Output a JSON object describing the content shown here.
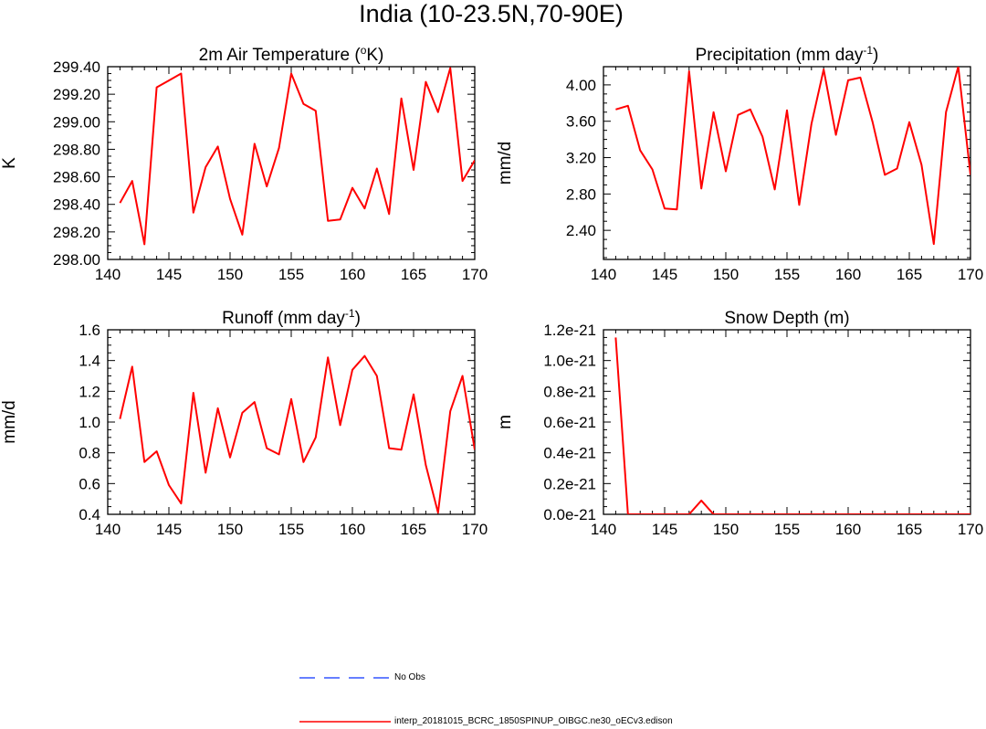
{
  "title": "India (10-23.5N,70-90E)",
  "colors": {
    "model": "#ff0000",
    "obs": "#3355ff",
    "axis": "#000000"
  },
  "legend": {
    "obs_label": "No Obs",
    "model_label": "interp_20181015_BCRC_1850SPINUP_OIBGC.ne30_oECv3.edison"
  },
  "chart_data": [
    {
      "type": "line",
      "title": "2m Air Temperature (",
      "title_sup": "o",
      "title_after": "K)",
      "ylabel": "K",
      "xlim": [
        140,
        170
      ],
      "ylim": [
        298.0,
        299.4
      ],
      "xticks": [
        140,
        145,
        150,
        155,
        160,
        165,
        170
      ],
      "xtick_labels": [
        "140",
        "145",
        "150",
        "155",
        "160",
        "165",
        "170"
      ],
      "yticks": [
        298.0,
        298.2,
        298.4,
        298.6,
        298.8,
        299.0,
        299.2,
        299.4
      ],
      "ytick_labels": [
        "298.00",
        "298.20",
        "298.40",
        "298.60",
        "298.80",
        "299.00",
        "299.20",
        "299.40"
      ],
      "x": [
        141,
        142,
        143,
        144,
        145,
        146,
        147,
        148,
        149,
        150,
        151,
        152,
        153,
        154,
        155,
        156,
        157,
        158,
        159,
        160,
        161,
        162,
        163,
        164,
        165,
        166,
        167,
        168,
        169,
        170
      ],
      "series": [
        {
          "name": "model",
          "values": [
            298.41,
            298.57,
            298.11,
            299.25,
            299.3,
            299.35,
            298.34,
            298.67,
            298.82,
            298.44,
            298.18,
            298.84,
            298.53,
            298.81,
            299.35,
            299.13,
            299.08,
            298.28,
            298.29,
            298.52,
            298.37,
            298.66,
            298.33,
            299.17,
            298.65,
            299.29,
            299.07,
            299.39,
            298.57,
            298.72
          ]
        }
      ]
    },
    {
      "type": "line",
      "title": "Precipitation (mm day",
      "title_sup": "-1",
      "title_after": ")",
      "ylabel": "mm/d",
      "xlim": [
        140,
        170
      ],
      "ylim": [
        2.08,
        4.2
      ],
      "xticks": [
        140,
        145,
        150,
        155,
        160,
        165,
        170
      ],
      "xtick_labels": [
        "140",
        "145",
        "150",
        "155",
        "160",
        "165",
        "170"
      ],
      "yticks": [
        2.4,
        2.8,
        3.2,
        3.6,
        4.0
      ],
      "ytick_labels": [
        "2.40",
        "2.80",
        "3.20",
        "3.60",
        "4.00"
      ],
      "x": [
        141,
        142,
        143,
        144,
        145,
        146,
        147,
        148,
        149,
        150,
        151,
        152,
        153,
        154,
        155,
        156,
        157,
        158,
        159,
        160,
        161,
        162,
        163,
        164,
        165,
        166,
        167,
        168,
        169,
        170
      ],
      "series": [
        {
          "name": "model",
          "values": [
            3.73,
            3.77,
            3.28,
            3.07,
            2.64,
            2.63,
            4.15,
            2.86,
            3.7,
            3.05,
            3.67,
            3.73,
            3.43,
            2.85,
            3.72,
            2.68,
            3.57,
            4.17,
            3.45,
            4.05,
            4.08,
            3.59,
            3.01,
            3.08,
            3.59,
            3.12,
            2.25,
            3.7,
            4.2,
            3.01
          ]
        }
      ]
    },
    {
      "type": "line",
      "title": "Runoff (mm day",
      "title_sup": "-1",
      "title_after": ")",
      "ylabel": "mm/d",
      "xlim": [
        140,
        170
      ],
      "ylim": [
        0.4,
        1.6
      ],
      "xticks": [
        140,
        145,
        150,
        155,
        160,
        165,
        170
      ],
      "xtick_labels": [
        "140",
        "145",
        "150",
        "155",
        "160",
        "165",
        "170"
      ],
      "yticks": [
        0.4,
        0.6,
        0.8,
        1.0,
        1.2,
        1.4,
        1.6
      ],
      "ytick_labels": [
        "0.4",
        "0.6",
        "0.8",
        "1.0",
        "1.2",
        "1.4",
        "1.6"
      ],
      "x": [
        141,
        142,
        143,
        144,
        145,
        146,
        147,
        148,
        149,
        150,
        151,
        152,
        153,
        154,
        155,
        156,
        157,
        158,
        159,
        160,
        161,
        162,
        163,
        164,
        165,
        166,
        167,
        168,
        169,
        170
      ],
      "series": [
        {
          "name": "model",
          "values": [
            1.02,
            1.36,
            0.74,
            0.81,
            0.59,
            0.47,
            1.19,
            0.67,
            1.09,
            0.77,
            1.06,
            1.13,
            0.83,
            0.79,
            1.15,
            0.74,
            0.9,
            1.42,
            0.98,
            1.34,
            1.43,
            1.3,
            0.83,
            0.82,
            1.18,
            0.72,
            0.41,
            1.07,
            1.3,
            0.82
          ]
        }
      ]
    },
    {
      "type": "line",
      "title": "Snow Depth (m)",
      "title_sup": "",
      "title_after": "",
      "ylabel": "m",
      "xlim": [
        140,
        170
      ],
      "ylim": [
        0,
        1.2
      ],
      "y_unit_note": "values in units of 1e-21 m",
      "xticks": [
        140,
        145,
        150,
        155,
        160,
        165,
        170
      ],
      "xtick_labels": [
        "140",
        "145",
        "150",
        "155",
        "160",
        "165",
        "170"
      ],
      "yticks": [
        0,
        0.2,
        0.4,
        0.6,
        0.8,
        1.0,
        1.2
      ],
      "ytick_labels": [
        "0.0e-21",
        "0.2e-21",
        "0.4e-21",
        "0.6e-21",
        "0.8e-21",
        "1.0e-21",
        "1.2e-21"
      ],
      "x": [
        141,
        142,
        143,
        144,
        145,
        146,
        147,
        148,
        149,
        150,
        151,
        152,
        153,
        154,
        155,
        156,
        157,
        158,
        159,
        160,
        161,
        162,
        163,
        164,
        165,
        166,
        167,
        168,
        169,
        170
      ],
      "series": [
        {
          "name": "model",
          "values": [
            1.15,
            0,
            0,
            0,
            0,
            0,
            0,
            0.09,
            0,
            0,
            0,
            0,
            0,
            0,
            0,
            0,
            0,
            0,
            0,
            0,
            0,
            0,
            0,
            0,
            0,
            0,
            0,
            0,
            0,
            0
          ]
        }
      ]
    }
  ]
}
